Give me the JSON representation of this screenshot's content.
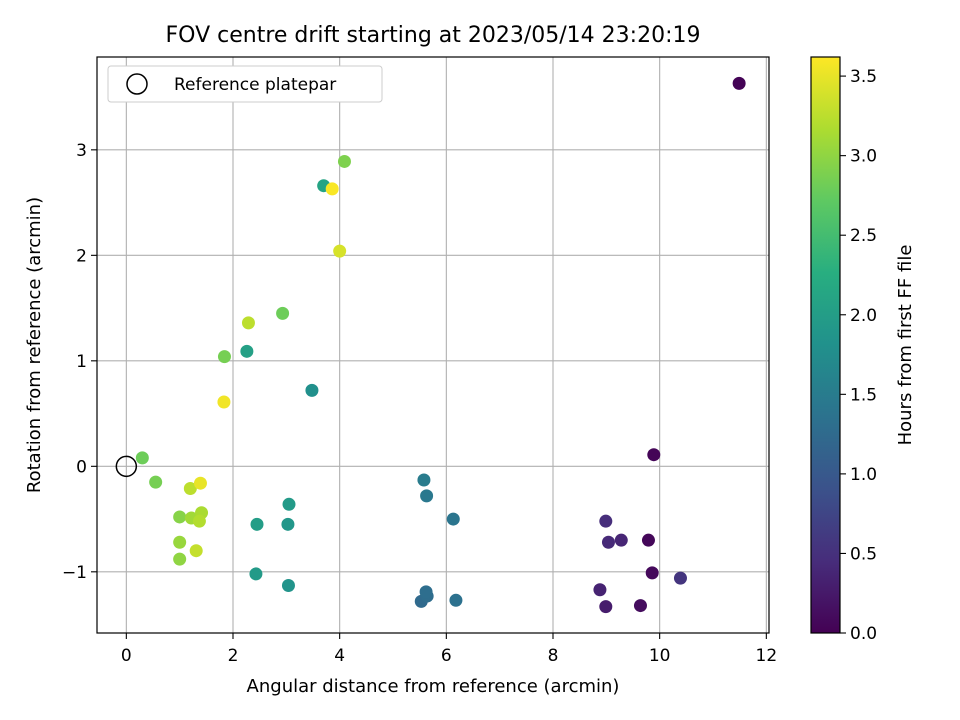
{
  "chart_data": {
    "type": "scatter",
    "title": "FOV centre drift starting at 2023/05/14 23:20:19",
    "xlabel": "Angular distance from reference (arcmin)",
    "ylabel": "Rotation from reference (arcmin)",
    "xlim": [
      -0.55,
      12.05
    ],
    "ylim": [
      -1.58,
      3.88
    ],
    "xticks": [
      0,
      2,
      4,
      6,
      8,
      10,
      12
    ],
    "yticks": [
      -1,
      0,
      1,
      2,
      3
    ],
    "xtick_labels": [
      "0",
      "2",
      "4",
      "6",
      "8",
      "10",
      "12"
    ],
    "ytick_labels": [
      "−1",
      "0",
      "1",
      "2",
      "3"
    ],
    "grid": true,
    "legend": {
      "position": "top-left",
      "entries": [
        "Reference platepar"
      ]
    },
    "colorbar": {
      "label": "Hours from first FF file",
      "range": [
        0.0,
        3.62
      ],
      "ticks": [
        0.0,
        0.5,
        1.0,
        1.5,
        2.0,
        2.5,
        3.0,
        3.5
      ],
      "tick_labels": [
        "0.0",
        "0.5",
        "1.0",
        "1.5",
        "2.0",
        "2.5",
        "3.0",
        "3.5"
      ],
      "colormap": "viridis"
    },
    "reference_point": {
      "x": 0,
      "y": 0
    },
    "points": [
      {
        "x": 11.49,
        "y": 3.63,
        "c": 0.02
      },
      {
        "x": 9.89,
        "y": 0.11,
        "c": 0.04
      },
      {
        "x": 9.79,
        "y": -0.7,
        "c": 0.06
      },
      {
        "x": 9.86,
        "y": -1.01,
        "c": 0.08
      },
      {
        "x": 9.64,
        "y": -1.32,
        "c": 0.12
      },
      {
        "x": 8.99,
        "y": -1.33,
        "c": 0.28
      },
      {
        "x": 8.88,
        "y": -1.17,
        "c": 0.35
      },
      {
        "x": 9.28,
        "y": -0.7,
        "c": 0.38
      },
      {
        "x": 9.04,
        "y": -0.72,
        "c": 0.42
      },
      {
        "x": 8.99,
        "y": -0.52,
        "c": 0.46
      },
      {
        "x": 10.39,
        "y": -1.06,
        "c": 0.55
      },
      {
        "x": 5.53,
        "y": -1.28,
        "c": 1.25
      },
      {
        "x": 5.64,
        "y": -1.23,
        "c": 1.28
      },
      {
        "x": 5.62,
        "y": -1.19,
        "c": 1.3
      },
      {
        "x": 6.18,
        "y": -1.27,
        "c": 1.35
      },
      {
        "x": 6.13,
        "y": -0.5,
        "c": 1.4
      },
      {
        "x": 5.63,
        "y": -0.28,
        "c": 1.45
      },
      {
        "x": 5.58,
        "y": -0.13,
        "c": 1.5
      },
      {
        "x": 3.48,
        "y": 0.72,
        "c": 1.8
      },
      {
        "x": 3.04,
        "y": -1.13,
        "c": 1.85
      },
      {
        "x": 3.03,
        "y": -0.55,
        "c": 1.9
      },
      {
        "x": 3.05,
        "y": -0.36,
        "c": 1.95
      },
      {
        "x": 2.43,
        "y": -1.02,
        "c": 1.95
      },
      {
        "x": 2.45,
        "y": -0.55,
        "c": 2.0
      },
      {
        "x": 2.26,
        "y": 1.09,
        "c": 2.05
      },
      {
        "x": 3.7,
        "y": 2.66,
        "c": 2.1
      },
      {
        "x": 0.3,
        "y": 0.08,
        "c": 2.8
      },
      {
        "x": 0.55,
        "y": -0.15,
        "c": 2.85
      },
      {
        "x": 1.84,
        "y": 1.04,
        "c": 2.85
      },
      {
        "x": 2.93,
        "y": 1.45,
        "c": 2.8
      },
      {
        "x": 4.09,
        "y": 2.89,
        "c": 2.9
      },
      {
        "x": 1.0,
        "y": -0.48,
        "c": 2.95
      },
      {
        "x": 1.0,
        "y": -0.88,
        "c": 3.0
      },
      {
        "x": 1.0,
        "y": -0.72,
        "c": 3.05
      },
      {
        "x": 1.22,
        "y": -0.49,
        "c": 3.1
      },
      {
        "x": 1.41,
        "y": -0.44,
        "c": 3.15
      },
      {
        "x": 1.37,
        "y": -0.52,
        "c": 3.2
      },
      {
        "x": 1.2,
        "y": -0.21,
        "c": 3.25
      },
      {
        "x": 2.29,
        "y": 1.36,
        "c": 3.25
      },
      {
        "x": 1.31,
        "y": -0.8,
        "c": 3.3
      },
      {
        "x": 4.0,
        "y": 2.04,
        "c": 3.4
      },
      {
        "x": 1.39,
        "y": -0.16,
        "c": 3.5
      },
      {
        "x": 1.83,
        "y": 0.61,
        "c": 3.55
      },
      {
        "x": 3.86,
        "y": 2.63,
        "c": 3.6
      }
    ]
  }
}
